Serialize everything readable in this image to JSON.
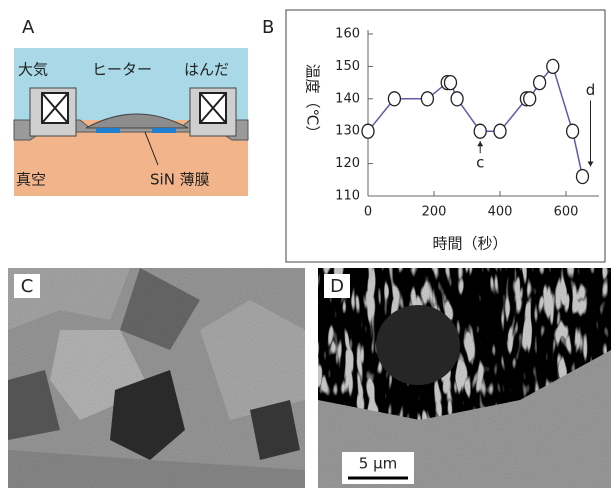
{
  "panels": {
    "A": {
      "letter": "A",
      "labels": {
        "air": "大気",
        "heater": "ヒーター",
        "solder": "はんだ",
        "vacuum": "真空",
        "membrane": "SiN 薄膜"
      }
    },
    "B": {
      "letter": "B"
    },
    "C": {
      "letter": "C"
    },
    "D": {
      "letter": "D",
      "scale_bar": "5 µm"
    }
  },
  "chart_data": {
    "type": "line",
    "xlabel": "時間（秒）",
    "ylabel": "温度（℃）",
    "x": [
      0,
      80,
      180,
      240,
      250,
      270,
      340,
      400,
      480,
      490,
      520,
      560,
      620,
      650
    ],
    "values": [
      130,
      140,
      140,
      145,
      145,
      140,
      130,
      130,
      140,
      140,
      145,
      150,
      130,
      116
    ],
    "color": "#6a55a8",
    "xlim": [
      0,
      700
    ],
    "xticks": [
      0,
      200,
      400,
      600
    ],
    "ylim": [
      110,
      160
    ],
    "yticks": [
      110,
      120,
      130,
      140,
      150,
      160
    ],
    "annotations": [
      {
        "text": "c",
        "index": 6
      },
      {
        "text": "d",
        "index": 13
      }
    ]
  }
}
